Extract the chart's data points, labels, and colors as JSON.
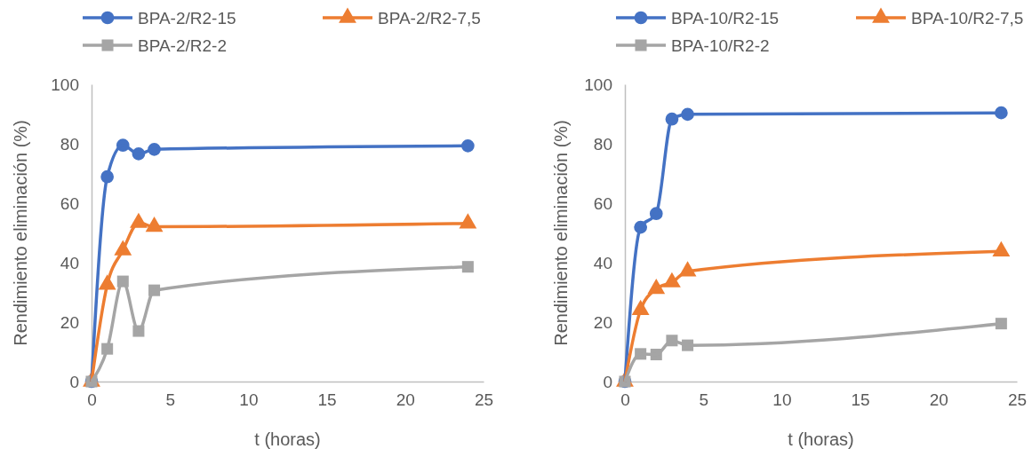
{
  "chart_data": [
    {
      "type": "line",
      "xlabel": "t (horas)",
      "ylabel": "Rendimiento eliminación (%)",
      "x": [
        0,
        1,
        2,
        3,
        4,
        24
      ],
      "xlim": [
        0,
        25
      ],
      "xticks": [
        0,
        5,
        10,
        15,
        20,
        25
      ],
      "ylim": [
        0,
        100
      ],
      "yticks": [
        0,
        20,
        40,
        60,
        80,
        100
      ],
      "grid": false,
      "legend": "top",
      "series": [
        {
          "name": "BPA-2/R2-15",
          "color": "#4472c4",
          "marker": "circle",
          "values": [
            0,
            68.9,
            79.5,
            76.6,
            78.1,
            79.3
          ]
        },
        {
          "name": "BPA-2/R2-7,5",
          "color": "#ed7d31",
          "marker": "triangle",
          "values": [
            0,
            32.6,
            44.2,
            53.4,
            52.1,
            53.2
          ]
        },
        {
          "name": "BPA-2/R2-2",
          "color": "#a5a5a5",
          "marker": "square",
          "values": [
            0,
            11,
            33.7,
            17,
            30.7,
            38.6
          ]
        }
      ]
    },
    {
      "type": "line",
      "xlabel": "t (horas)",
      "ylabel": "Rendimiento eliminación (%)",
      "x": [
        0,
        1,
        2,
        3,
        4,
        24
      ],
      "xlim": [
        0,
        25
      ],
      "xticks": [
        0,
        5,
        10,
        15,
        20,
        25
      ],
      "ylim": [
        0,
        100
      ],
      "yticks": [
        0,
        20,
        40,
        60,
        80,
        100
      ],
      "grid": false,
      "legend": "top",
      "series": [
        {
          "name": "BPA-10/R2-15",
          "color": "#4472c4",
          "marker": "circle",
          "values": [
            0,
            51.9,
            56.5,
            88.3,
            89.9,
            90.4
          ]
        },
        {
          "name": "BPA-10/R2-7,5",
          "color": "#ed7d31",
          "marker": "triangle",
          "values": [
            0,
            24.1,
            31.2,
            33.4,
            37.1,
            43.8
          ]
        },
        {
          "name": "BPA-10/R2-2",
          "color": "#a5a5a5",
          "marker": "square",
          "values": [
            0,
            9.3,
            9.1,
            13.8,
            12.2,
            19.5
          ]
        }
      ]
    }
  ]
}
